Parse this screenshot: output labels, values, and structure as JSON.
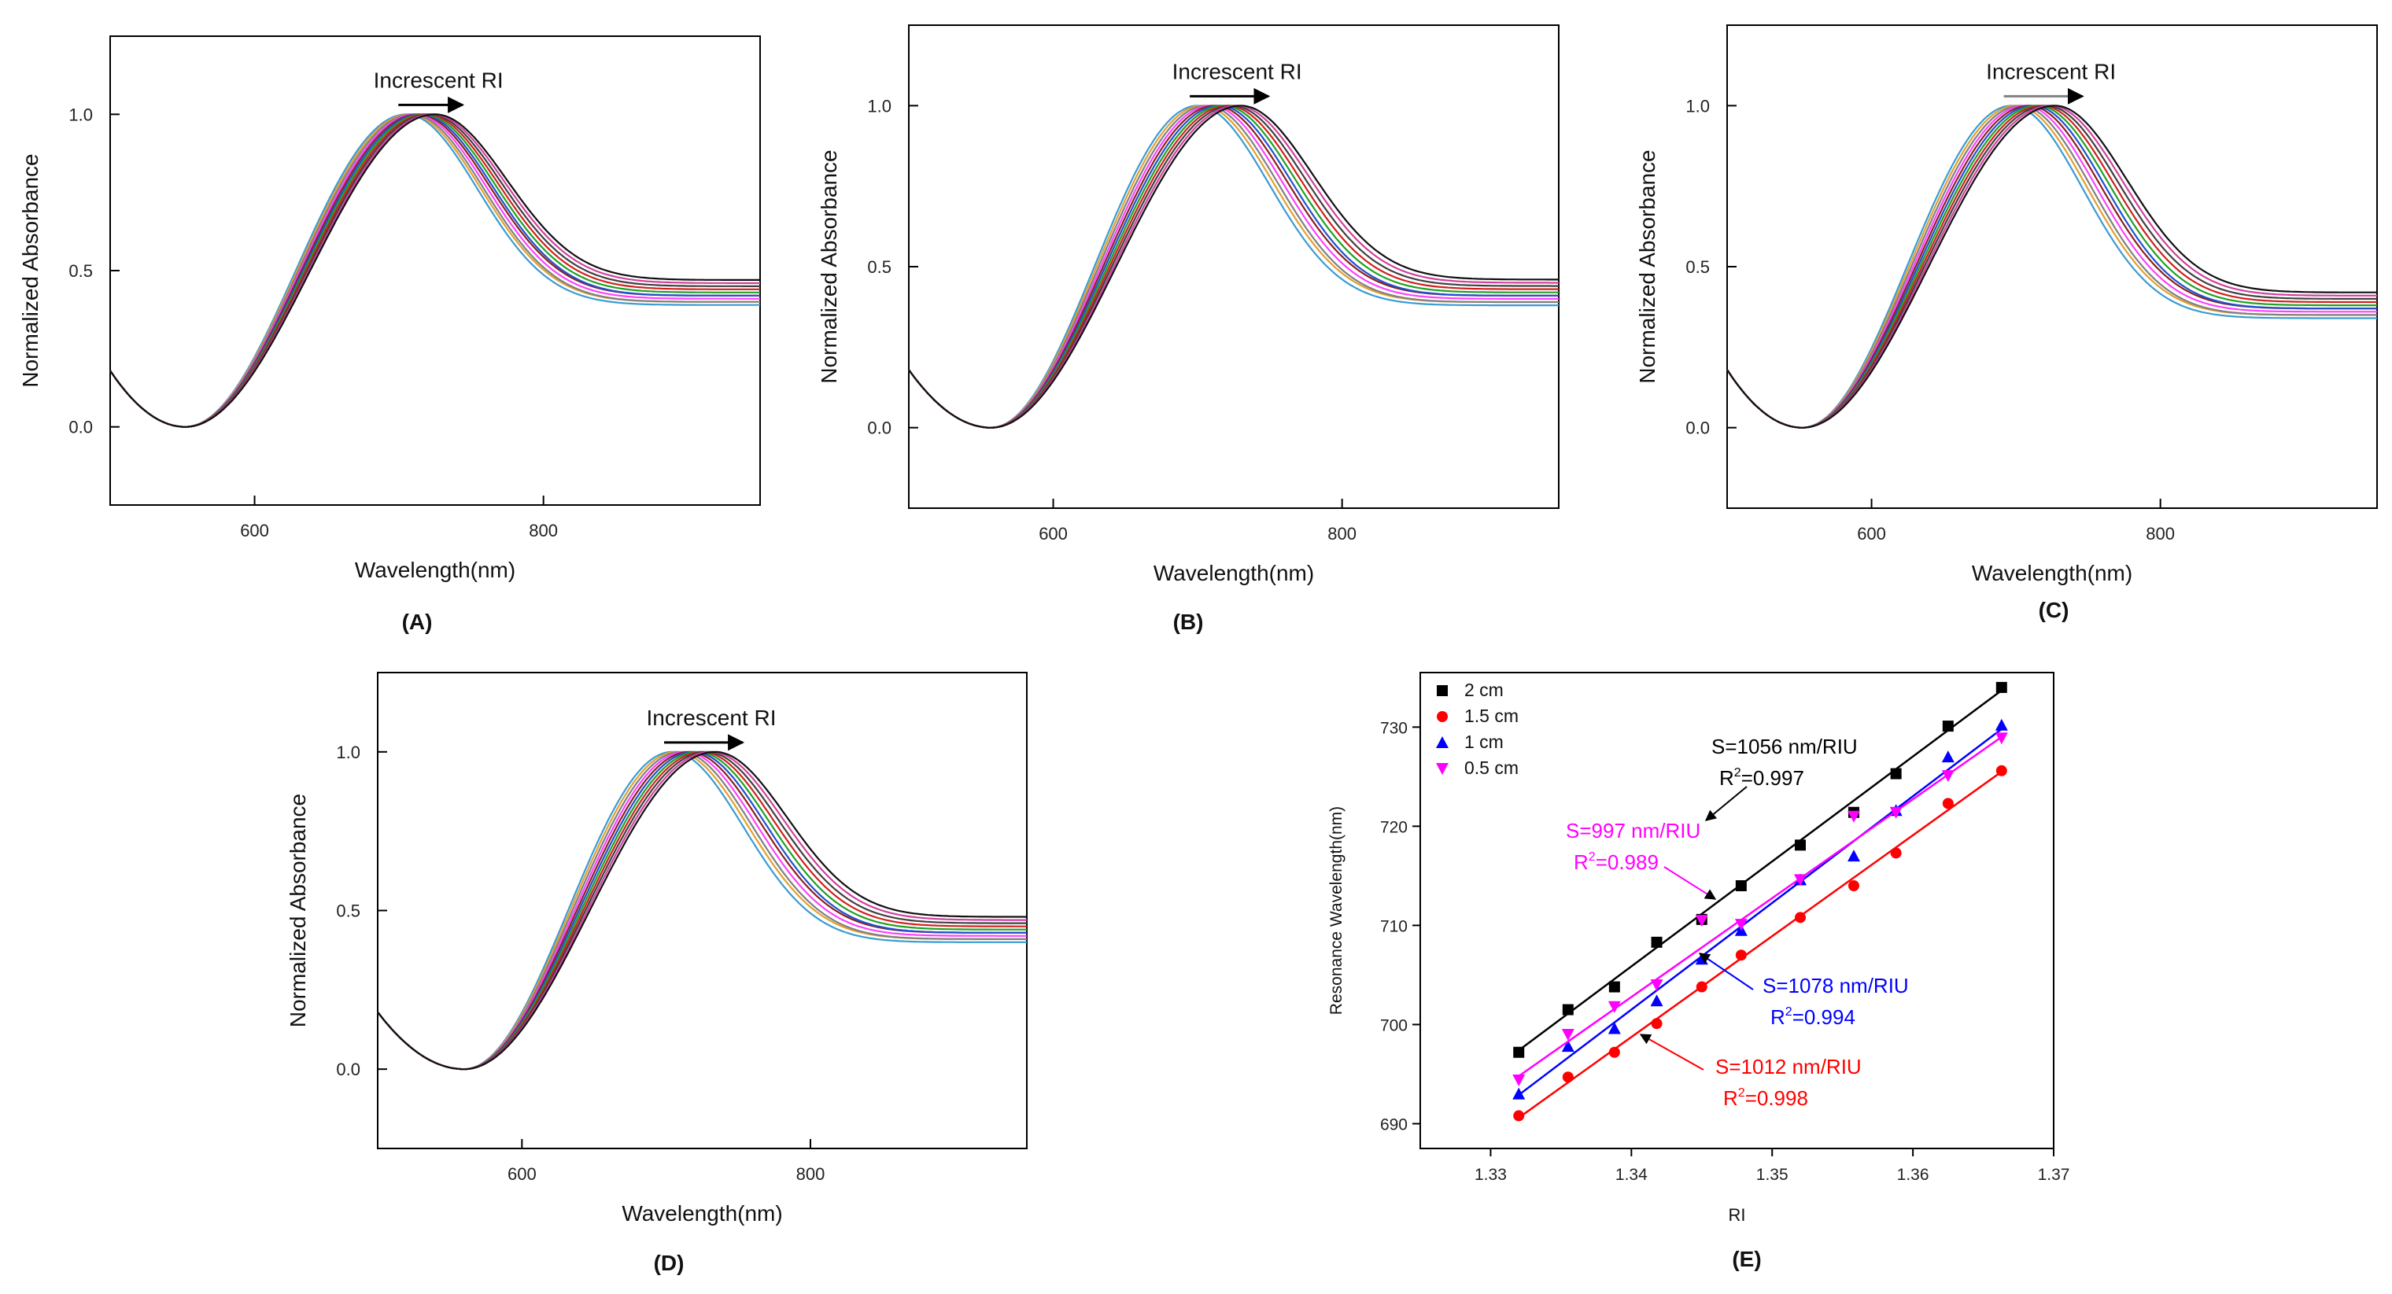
{
  "figure": {
    "panel_labels": [
      "(A)",
      "(B)",
      "(C)",
      "(D)",
      "(E)"
    ]
  },
  "colors": {
    "curves": [
      "#3a9bd5",
      "#e0a030",
      "#808080",
      "#ff40ff",
      "#8b2020",
      "#2050d0",
      "#20a020",
      "#d02020",
      "#404040",
      "#d040a0",
      "#101010"
    ],
    "series_2cm": "#000000",
    "series_1_5cm": "#ff0000",
    "series_1cm": "#0000ff",
    "series_0_5cm": "#ff00ff",
    "arrow_gray": "#808080"
  },
  "chart_data": [
    {
      "id": "A",
      "type": "line",
      "title": "",
      "annotation": "Increscent RI",
      "xlabel": "Wavelength(nm)",
      "ylabel": "Normalized Absorbance",
      "xlim": [
        500,
        950
      ],
      "ylim": [
        -0.25,
        1.25
      ],
      "xticks": [
        600,
        800
      ],
      "xtick_labels": [
        "600",
        "800"
      ],
      "yticks": [
        0.0,
        0.5,
        1.0
      ],
      "ytick_labels": [
        "0.0",
        "0.5",
        "1.0"
      ],
      "series_count": 11,
      "peaks_nm": [
        705,
        707,
        709,
        711,
        713,
        715,
        717,
        719,
        721,
        723,
        725
      ],
      "min_nm": 552,
      "tails": [
        0.39,
        0.4,
        0.4,
        0.41,
        0.42,
        0.42,
        0.43,
        0.44,
        0.45,
        0.46,
        0.47
      ]
    },
    {
      "id": "B",
      "type": "line",
      "title": "",
      "annotation": "Increscent RI",
      "xlabel": "Wavelength(nm)",
      "ylabel": "Normalized Absorbance",
      "xlim": [
        500,
        950
      ],
      "ylim": [
        -0.25,
        1.25
      ],
      "xticks": [
        600,
        800
      ],
      "xtick_labels": [
        "600",
        "800"
      ],
      "yticks": [
        0.0,
        0.5,
        1.0
      ],
      "ytick_labels": [
        "0.0",
        "0.5",
        "1.0"
      ],
      "series_count": 11,
      "peaks_nm": [
        700,
        703,
        706,
        709,
        712,
        715,
        718,
        721,
        724,
        727,
        730
      ],
      "min_nm": 557,
      "tails": [
        0.38,
        0.39,
        0.39,
        0.4,
        0.41,
        0.41,
        0.42,
        0.43,
        0.44,
        0.45,
        0.46
      ]
    },
    {
      "id": "C",
      "type": "line",
      "title": "",
      "annotation": "Increscent RI",
      "xlabel": "Wavelength(nm)",
      "ylabel": "Normalized Absorbance",
      "xlim": [
        500,
        950
      ],
      "ylim": [
        -0.25,
        1.25
      ],
      "xticks": [
        600,
        800
      ],
      "xtick_labels": [
        "600",
        "800"
      ],
      "yticks": [
        0.0,
        0.5,
        1.0
      ],
      "ytick_labels": [
        "0.0",
        "0.5",
        "1.0"
      ],
      "series_count": 11,
      "peaks_nm": [
        697,
        700,
        703,
        706,
        709,
        712,
        715,
        718,
        721,
        724,
        727
      ],
      "min_nm": 552,
      "tails": [
        0.34,
        0.35,
        0.35,
        0.36,
        0.37,
        0.37,
        0.38,
        0.39,
        0.4,
        0.41,
        0.42
      ]
    },
    {
      "id": "D",
      "type": "line",
      "title": "",
      "annotation": "Increscent RI",
      "xlabel": "Wavelength(nm)",
      "ylabel": "Normalized Absorbance",
      "xlim": [
        500,
        950
      ],
      "ylim": [
        -0.25,
        1.25
      ],
      "xticks": [
        600,
        800
      ],
      "xtick_labels": [
        "600",
        "800"
      ],
      "yticks": [
        0.0,
        0.5,
        1.0
      ],
      "ytick_labels": [
        "0.0",
        "0.5",
        "1.0"
      ],
      "series_count": 11,
      "peaks_nm": [
        704,
        707,
        710,
        713,
        716,
        719,
        722,
        725,
        728,
        731,
        734
      ],
      "min_nm": 560,
      "tails": [
        0.4,
        0.41,
        0.41,
        0.42,
        0.43,
        0.43,
        0.44,
        0.45,
        0.46,
        0.47,
        0.48
      ]
    },
    {
      "id": "E",
      "type": "scatter",
      "title": "",
      "xlabel": "RI",
      "ylabel": "Resonance Wavelength(nm)",
      "xlim": [
        1.325,
        1.37
      ],
      "ylim": [
        687.5,
        735.5
      ],
      "xticks": [
        1.33,
        1.34,
        1.35,
        1.36,
        1.37
      ],
      "xtick_labels": [
        "1.33",
        "1.34",
        "1.35",
        "1.36",
        "1.37"
      ],
      "yticks": [
        690,
        700,
        710,
        720,
        730
      ],
      "ytick_labels": [
        "690",
        "700",
        "710",
        "720",
        "730"
      ],
      "x": [
        1.332,
        1.3355,
        1.3388,
        1.3418,
        1.345,
        1.3478,
        1.352,
        1.3558,
        1.3588,
        1.3625,
        1.3663
      ],
      "series": [
        {
          "name": "2 cm",
          "marker": "square",
          "values": [
            697.2,
            701.5,
            703.8,
            708.3,
            710.6,
            714.0,
            718.1,
            721.4,
            725.3,
            730.1,
            734.0
          ],
          "fit": [
            697.4,
            733.7
          ]
        },
        {
          "name": "1.5 cm",
          "marker": "circle",
          "values": [
            690.8,
            694.7,
            697.2,
            700.1,
            703.8,
            707.0,
            710.8,
            714.0,
            717.3,
            722.3,
            725.6
          ],
          "fit": [
            690.6,
            725.5
          ]
        },
        {
          "name": "1 cm",
          "marker": "triangle-up",
          "values": [
            693.0,
            697.8,
            699.6,
            702.4,
            706.6,
            709.5,
            714.6,
            717.0,
            721.6,
            727.0,
            730.2
          ],
          "fit": [
            692.9,
            729.8
          ]
        },
        {
          "name": "0.5 cm",
          "marker": "triangle-down",
          "values": [
            694.4,
            699.0,
            701.8,
            704.0,
            710.5,
            710.1,
            714.6,
            721.0,
            721.4,
            725.1,
            728.9
          ],
          "fit": [
            694.8,
            729.0
          ]
        }
      ],
      "legend": {
        "placement": "top-left"
      },
      "annotations": [
        {
          "series": "2 cm",
          "sensitivity": "S=1056 nm/RIU",
          "r2_prefix": "R",
          "r2_sup": "2",
          "r2_value": "=0.997"
        },
        {
          "series": "0.5 cm",
          "sensitivity": "S=997 nm/RIU",
          "r2_prefix": "R",
          "r2_sup": "2",
          "r2_value": "=0.989"
        },
        {
          "series": "1 cm",
          "sensitivity": "S=1078 nm/RIU",
          "r2_prefix": "R",
          "r2_sup": "2",
          "r2_value": "=0.994"
        },
        {
          "series": "1.5 cm",
          "sensitivity": "S=1012 nm/RIU",
          "r2_prefix": "R",
          "r2_sup": "2",
          "r2_value": "=0.998"
        }
      ]
    }
  ]
}
